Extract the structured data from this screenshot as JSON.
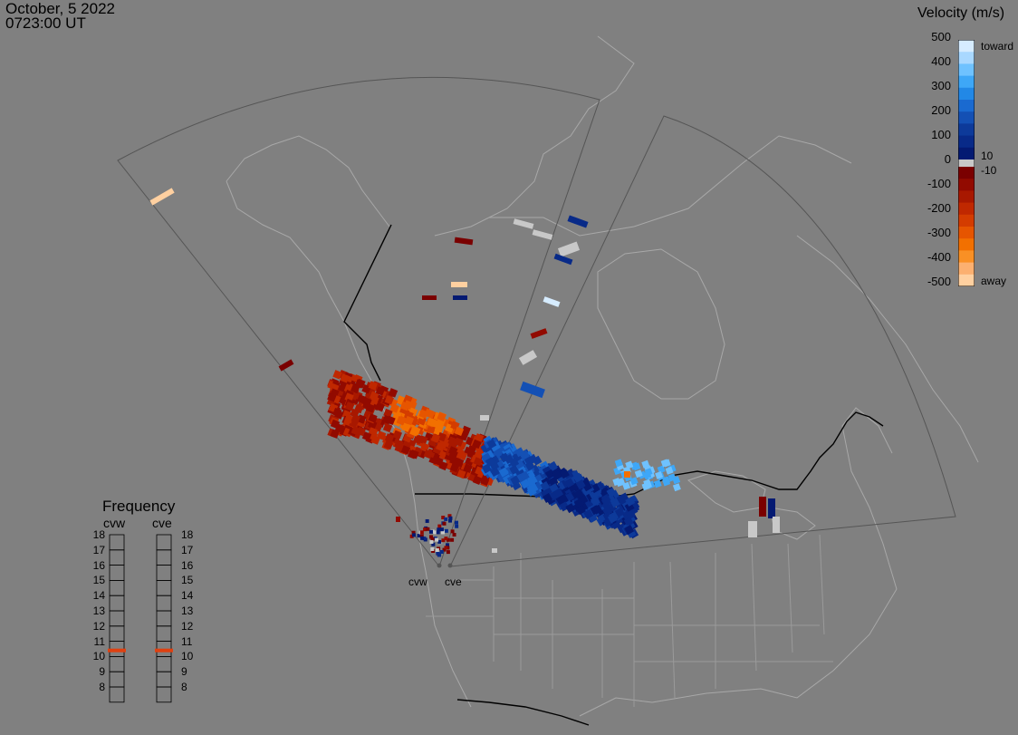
{
  "header": {
    "date": "October, 5 2022",
    "time": "0723:00 UT"
  },
  "colorbar": {
    "title": "Velocity (m/s)",
    "ticks": [
      "500",
      "400",
      "300",
      "200",
      "100",
      "0",
      "-100",
      "-200",
      "-300",
      "-400",
      "-500"
    ],
    "inner_pos": "10",
    "inner_neg": "-10",
    "top_label": "toward",
    "bottom_label": "away",
    "colors_toward": [
      "#d6ecff",
      "#a9d8ff",
      "#6fc2ff",
      "#3ea7f7",
      "#2288e6",
      "#1a6ad0",
      "#1450b4",
      "#0d3a9a",
      "#082a88",
      "#041a72"
    ],
    "colors_away": [
      "#7a0000",
      "#920a00",
      "#a81800",
      "#c02800",
      "#d43c00",
      "#e65500",
      "#f27000",
      "#f99025",
      "#fcb070",
      "#ffd0a0"
    ],
    "ground_scatter": "#c8c8c8"
  },
  "frequency": {
    "title": "Frequency",
    "radars": [
      "cvw",
      "cve"
    ],
    "levels": [
      "18",
      "17",
      "16",
      "15",
      "14",
      "13",
      "12",
      "11",
      "10",
      "9",
      "8"
    ],
    "current": {
      "cvw": 10.9,
      "cve": 10.9
    },
    "marker_color": "#e04010"
  },
  "radar_labels": [
    "cvw",
    "cve"
  ],
  "colors": {
    "background": "#808080",
    "borders": "#000000",
    "coast": "#a8a8a8",
    "fov": "#555555"
  }
}
